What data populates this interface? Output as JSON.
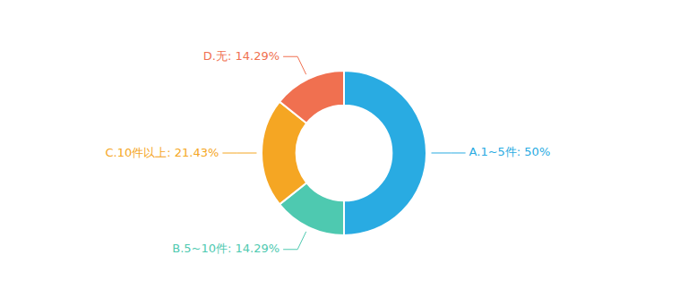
{
  "chart_data": {
    "type": "donut",
    "categories": [
      "A.1~5件: 50%",
      "B.5~10件: 14.29%",
      "C.10件以上: 21.43%",
      "D.无: 14.29%"
    ],
    "values": [
      50.0,
      14.29,
      21.43,
      14.29
    ],
    "colors": [
      "#29ABE2",
      "#4EC9B0",
      "#F5A623",
      "#F07050"
    ]
  }
}
